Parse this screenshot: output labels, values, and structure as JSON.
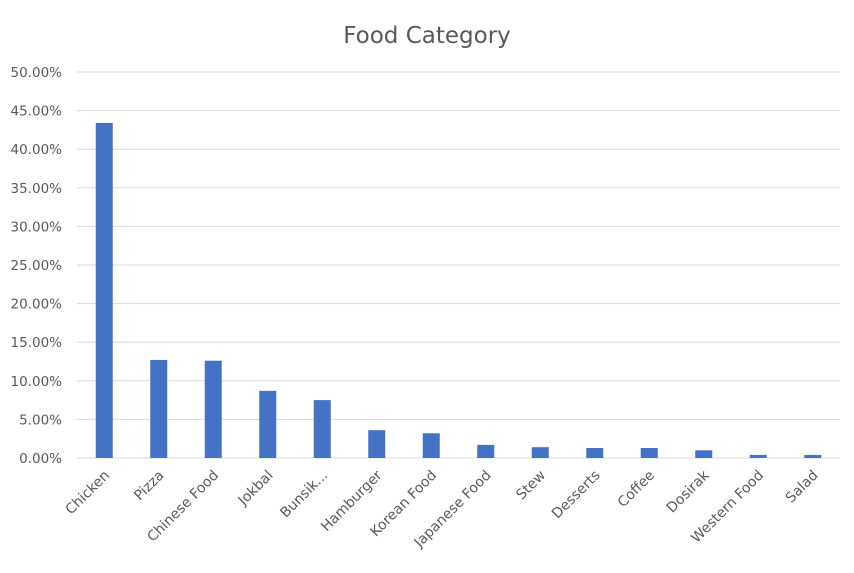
{
  "chart_data": {
    "type": "bar",
    "title": "Food Category",
    "xlabel": "",
    "ylabel": "",
    "ylim": [
      0,
      50
    ],
    "yticks": [
      "0.00%",
      "5.00%",
      "10.00%",
      "15.00%",
      "20.00%",
      "25.00%",
      "30.00%",
      "35.00%",
      "40.00%",
      "45.00%",
      "50.00%"
    ],
    "grid": true,
    "legend": "none",
    "categories": [
      "Chicken",
      "Pizza",
      "Chinese Food",
      "Jokbal",
      "Bunsik...",
      "Hamburger",
      "Korean Food",
      "Japanese Food",
      "Stew",
      "Desserts",
      "Coffee",
      "Dosirak",
      "Western Food",
      "Salad"
    ],
    "values": [
      43.4,
      12.7,
      12.6,
      8.7,
      7.5,
      3.6,
      3.2,
      1.7,
      1.4,
      1.3,
      1.3,
      1.0,
      0.4,
      0.4
    ],
    "value_unit": "%",
    "bar_color": "#4472C4",
    "grid_color": "#D9D9D9"
  }
}
